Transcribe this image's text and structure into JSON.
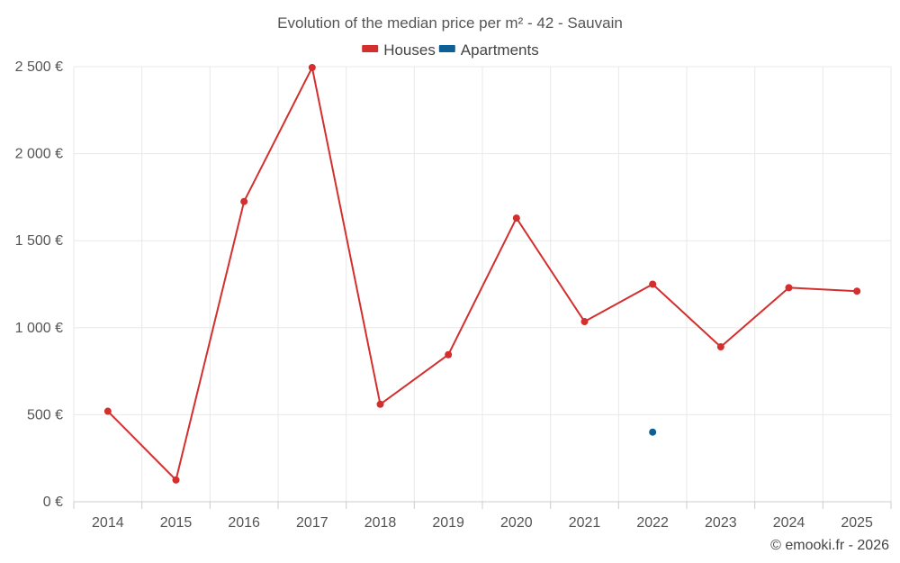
{
  "chart_data": {
    "type": "line",
    "title": "Evolution of the median price per m² - 42 - Sauvain",
    "categories": [
      "2014",
      "2015",
      "2016",
      "2017",
      "2018",
      "2019",
      "2020",
      "2021",
      "2022",
      "2023",
      "2024",
      "2025"
    ],
    "series": [
      {
        "name": "Houses",
        "color": "#d32f2f",
        "values": [
          520,
          125,
          1725,
          2495,
          560,
          845,
          1630,
          1035,
          1250,
          890,
          1230,
          1210
        ]
      },
      {
        "name": "Apartments",
        "color": "#0d5f96",
        "values": [
          null,
          null,
          null,
          null,
          null,
          null,
          null,
          null,
          400,
          null,
          null,
          null
        ]
      }
    ],
    "ylim": [
      0,
      2500
    ],
    "yticks": [
      0,
      500,
      1000,
      1500,
      2000,
      2500
    ],
    "ytick_labels": [
      "0 €",
      "500 €",
      "1 000 €",
      "1 500 €",
      "2 000 €",
      "2 500 €"
    ],
    "xlabel": "",
    "ylabel": "",
    "legend_position": "top-center",
    "grid": true
  },
  "credit": "© emooki.fr - 2026"
}
